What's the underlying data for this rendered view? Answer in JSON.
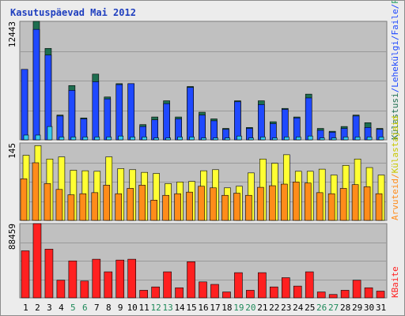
{
  "title": "Kasutuspäevad Mai 2012",
  "colors": {
    "panel_bg": "#c0c0c0",
    "grid": "#999999",
    "kulastused": "#1e6e50",
    "lehekulgi": "#1f49ff",
    "failid": "#35c8f0",
    "kulastajad": "#ffff33",
    "arvuti": "#ff8c1a",
    "baidid": "#ff2020",
    "weekday_label": "#000000",
    "weekend_label": "#1f8a5a",
    "title": "#1f3fbf"
  },
  "days": [
    "1",
    "2",
    "3",
    "4",
    "5",
    "6",
    "7",
    "8",
    "9",
    "10",
    "11",
    "12",
    "13",
    "14",
    "15",
    "16",
    "17",
    "18",
    "19",
    "20",
    "21",
    "22",
    "23",
    "24",
    "25",
    "26",
    "27",
    "28",
    "29",
    "30",
    "31"
  ],
  "weekend_days": [
    "5",
    "6",
    "12",
    "13",
    "19",
    "20",
    "26",
    "27"
  ],
  "side_labels": {
    "top": [
      {
        "text": "Külastusi",
        "color": "#1e6e50"
      },
      {
        "text": "/",
        "color": "#1f49ff"
      },
      {
        "text": "Lehekülgi",
        "color": "#1f49ff"
      },
      {
        "text": "/",
        "color": "#1f49ff"
      },
      {
        "text": "Faile",
        "color": "#1f49ff"
      },
      {
        "text": "/",
        "color": "#1f49ff"
      },
      {
        "text": "Pöördumisi",
        "color": "#2aa36a"
      }
    ],
    "middle": [
      {
        "text": "Arvuteid",
        "color": "#ff8c1a"
      },
      {
        "text": "/",
        "color": "#ff8c1a"
      },
      {
        "text": "Külastajaid",
        "color": "#c8c800"
      }
    ],
    "bottom": [
      {
        "text": "KBaite",
        "color": "#ff2020"
      }
    ]
  },
  "chart_data": [
    {
      "type": "bar",
      "panel": "top",
      "ymax_label": "12443",
      "ylim": [
        0,
        12443
      ],
      "categories": [
        "1",
        "2",
        "3",
        "4",
        "5",
        "6",
        "7",
        "8",
        "9",
        "10",
        "11",
        "12",
        "13",
        "14",
        "15",
        "16",
        "17",
        "18",
        "19",
        "20",
        "21",
        "22",
        "23",
        "24",
        "25",
        "26",
        "27",
        "28",
        "29",
        "30",
        "31"
      ],
      "series": [
        {
          "name": "Külastusi",
          "values": [
            7400,
            12443,
            9600,
            2600,
            5700,
            2300,
            6900,
            4500,
            5900,
            5900,
            1600,
            2400,
            4100,
            2400,
            5600,
            2900,
            2200,
            1200,
            4100,
            1300,
            4100,
            1900,
            3300,
            2400,
            4800,
            1200,
            900,
            1400,
            2600,
            1800,
            1200
          ]
        },
        {
          "name": "Lehekülgi",
          "values": [
            7400,
            11600,
            8900,
            2500,
            5200,
            2200,
            6100,
            4300,
            5800,
            5900,
            1400,
            2100,
            3800,
            2200,
            5500,
            2600,
            2000,
            1100,
            4000,
            1200,
            3700,
            1700,
            3200,
            2300,
            4400,
            1000,
            800,
            1200,
            2500,
            1300,
            1100
          ]
        },
        {
          "name": "Faile",
          "values": [
            500,
            500,
            1400,
            300,
            300,
            300,
            300,
            300,
            400,
            300,
            300,
            200,
            200,
            300,
            300,
            200,
            200,
            200,
            400,
            200,
            300,
            200,
            300,
            300,
            400,
            200,
            200,
            300,
            300,
            300,
            300
          ]
        },
        {
          "name": "Pöördumisi",
          "values": [
            500,
            500,
            1400,
            300,
            300,
            300,
            300,
            300,
            400,
            300,
            300,
            200,
            200,
            300,
            300,
            200,
            200,
            200,
            400,
            200,
            300,
            200,
            300,
            300,
            400,
            200,
            200,
            300,
            300,
            300,
            300
          ]
        }
      ]
    },
    {
      "type": "bar",
      "panel": "middle",
      "ymax_label": "145",
      "ylim": [
        0,
        145
      ],
      "categories": [
        "1",
        "2",
        "3",
        "4",
        "5",
        "6",
        "7",
        "8",
        "9",
        "10",
        "11",
        "12",
        "13",
        "14",
        "15",
        "16",
        "17",
        "18",
        "19",
        "20",
        "21",
        "22",
        "23",
        "24",
        "25",
        "26",
        "27",
        "28",
        "29",
        "30",
        "31"
      ],
      "series": [
        {
          "name": "Külastajaid",
          "values": [
            122,
            140,
            115,
            119,
            94,
            93,
            92,
            119,
            97,
            95,
            90,
            88,
            69,
            72,
            73,
            93,
            95,
            61,
            64,
            89,
            115,
            107,
            123,
            92,
            92,
            96,
            85,
            103,
            115,
            99,
            85
          ]
        },
        {
          "name": "Arvuteid",
          "values": [
            78,
            108,
            69,
            58,
            48,
            50,
            52,
            66,
            50,
            60,
            66,
            38,
            47,
            50,
            53,
            64,
            61,
            47,
            51,
            47,
            62,
            65,
            68,
            72,
            70,
            52,
            50,
            60,
            67,
            63,
            50
          ]
        }
      ]
    },
    {
      "type": "bar",
      "panel": "bottom",
      "ymax_label": "88459",
      "ylim": [
        0,
        88459
      ],
      "categories": [
        "1",
        "2",
        "3",
        "4",
        "5",
        "6",
        "7",
        "8",
        "9",
        "10",
        "11",
        "12",
        "13",
        "14",
        "15",
        "16",
        "17",
        "18",
        "19",
        "20",
        "21",
        "22",
        "23",
        "24",
        "25",
        "26",
        "27",
        "28",
        "29",
        "30",
        "31"
      ],
      "series": [
        {
          "name": "KBaite",
          "values": [
            56000,
            88459,
            58000,
            21000,
            44000,
            20000,
            46000,
            31000,
            45000,
            46000,
            9000,
            13000,
            31000,
            12000,
            43000,
            19000,
            16000,
            7000,
            30000,
            9000,
            30000,
            13000,
            24000,
            14000,
            31000,
            7000,
            4000,
            9000,
            21000,
            12000,
            8000
          ]
        }
      ]
    }
  ]
}
